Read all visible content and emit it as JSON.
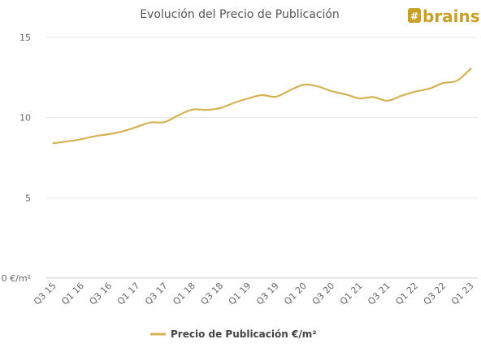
{
  "chart_data": {
    "type": "line",
    "title": "Evolución del Precio de Publicación",
    "logo_text": "brains",
    "xlabel": "",
    "ylabel": "",
    "x_tick_labels": [
      "Q3 15",
      "Q1 16",
      "Q3 16",
      "Q1 17",
      "Q3 17",
      "Q1 18",
      "Q3 18",
      "Q1 19",
      "Q3 19",
      "Q1 20",
      "Q3 20",
      "Q1 21",
      "Q3 21",
      "Q1 22",
      "Q3 22",
      "Q1 23"
    ],
    "y_tick_labels": [
      "0 €/m²",
      "5",
      "10",
      "15"
    ],
    "ylim": [
      0,
      15
    ],
    "grid": true,
    "legend_position": "bottom",
    "series": [
      {
        "name": "Precio de Publicación €/m²",
        "color": "#d4b254",
        "x": [
          "Q3 15",
          "Q4 15",
          "Q1 16",
          "Q2 16",
          "Q3 16",
          "Q4 16",
          "Q1 17",
          "Q2 17",
          "Q3 17",
          "Q4 17",
          "Q1 18",
          "Q2 18",
          "Q3 18",
          "Q4 18",
          "Q1 19",
          "Q2 19",
          "Q3 19",
          "Q4 19",
          "Q1 20",
          "Q2 20",
          "Q3 20",
          "Q4 20",
          "Q1 21",
          "Q2 21",
          "Q3 21",
          "Q4 21",
          "Q1 22",
          "Q2 22",
          "Q3 22",
          "Q4 22",
          "Q1 23"
        ],
        "values": [
          8.4,
          8.52,
          8.65,
          8.85,
          8.97,
          9.15,
          9.42,
          9.7,
          9.72,
          10.15,
          10.5,
          10.48,
          10.6,
          10.92,
          11.2,
          11.4,
          11.3,
          11.7,
          12.05,
          11.95,
          11.65,
          11.45,
          11.2,
          11.28,
          11.05,
          11.35,
          11.62,
          11.8,
          12.15,
          12.3,
          13.05
        ]
      }
    ]
  }
}
